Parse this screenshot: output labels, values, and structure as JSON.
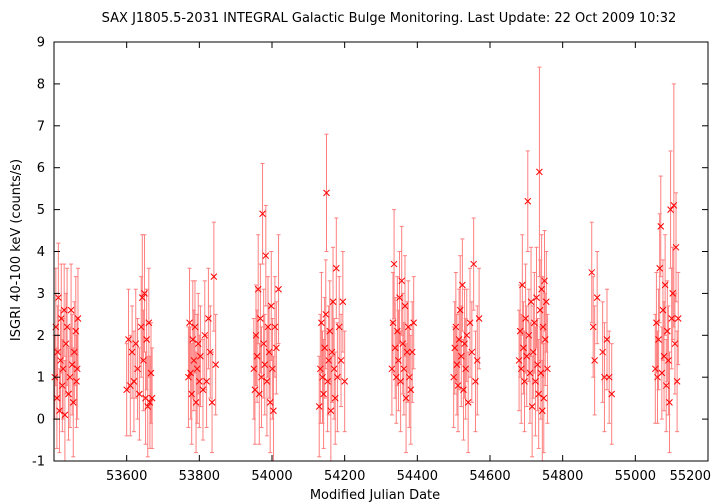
{
  "chart_data": {
    "type": "scatter",
    "title": "SAX J1805.5-2031   INTEGRAL Galactic Bulge Monitoring.  Last Update: 22 Oct 2009 10:32",
    "xlabel": "Modified Julian Date",
    "ylabel": "ISGRI 40-100 keV (counts/s)",
    "xlim": [
      53400,
      55200
    ],
    "ylim": [
      -1,
      9
    ],
    "xticks": [
      53600,
      53800,
      54000,
      54200,
      54400,
      54600,
      54800,
      55000,
      55200
    ],
    "yticks": [
      -1,
      0,
      1,
      2,
      3,
      4,
      5,
      6,
      7,
      8,
      9
    ],
    "grid": false,
    "legend": "none",
    "marker": "x",
    "error_bars": true,
    "colors": {
      "points": "#ff0000",
      "error_bars": "#ff7f7f",
      "axes": "#000000"
    },
    "series": [
      {
        "values": [
          [
            53402,
            1.0,
            1.0
          ],
          [
            53405,
            2.2,
            1.4
          ],
          [
            53408,
            0.5,
            1.2
          ],
          [
            53410,
            1.6,
            1.1
          ],
          [
            53412,
            2.9,
            1.3
          ],
          [
            53415,
            0.2,
            1.0
          ],
          [
            53418,
            1.4,
            1.2
          ],
          [
            53420,
            2.4,
            1.3
          ],
          [
            53423,
            0.8,
            1.1
          ],
          [
            53425,
            1.2,
            1.2
          ],
          [
            53428,
            2.6,
            1.1
          ],
          [
            53430,
            0.1,
            1.3
          ],
          [
            53433,
            1.8,
            1.2
          ],
          [
            53436,
            2.2,
            1.4
          ],
          [
            53440,
            0.6,
            1.1
          ],
          [
            53444,
            1.0,
            1.2
          ],
          [
            53447,
            2.6,
            1.1
          ],
          [
            53450,
            1.3,
            1.2
          ],
          [
            53453,
            0.4,
            1.3
          ],
          [
            53456,
            1.6,
            1.2
          ],
          [
            53460,
            2.1,
            1.3
          ],
          [
            53462,
            0.9,
            1.1
          ],
          [
            53464,
            1.2,
            1.2
          ],
          [
            53466,
            2.4,
            1.2
          ],
          [
            53600,
            0.7,
            1.1
          ],
          [
            53605,
            1.9,
            1.2
          ],
          [
            53610,
            0.8,
            1.2
          ],
          [
            53615,
            1.6,
            1.1
          ],
          [
            53620,
            0.9,
            1.2
          ],
          [
            53625,
            1.8,
            1.3
          ],
          [
            53630,
            1.2,
            1.2
          ],
          [
            53635,
            0.6,
            1.1
          ],
          [
            53640,
            2.2,
            1.2
          ],
          [
            53643,
            2.9,
            1.5
          ],
          [
            53646,
            1.4,
            1.2
          ],
          [
            53649,
            3.0,
            1.4
          ],
          [
            53652,
            0.5,
            1.1
          ],
          [
            53655,
            1.9,
            1.2
          ],
          [
            53658,
            0.3,
            1.2
          ],
          [
            53661,
            2.3,
            1.3
          ],
          [
            53664,
            0.4,
            1.1
          ],
          [
            53667,
            1.1,
            1.2
          ],
          [
            53670,
            0.5,
            1.2
          ],
          [
            53770,
            1.0,
            1.2
          ],
          [
            53773,
            2.3,
            1.3
          ],
          [
            53776,
            1.1,
            1.1
          ],
          [
            53779,
            0.6,
            1.2
          ],
          [
            53782,
            1.9,
            1.4
          ],
          [
            53785,
            1.4,
            1.2
          ],
          [
            53788,
            2.2,
            1.1
          ],
          [
            53791,
            0.4,
            1.2
          ],
          [
            53794,
            1.2,
            1.3
          ],
          [
            53797,
            1.8,
            1.2
          ],
          [
            53800,
            0.9,
            1.1
          ],
          [
            53803,
            1.5,
            1.2
          ],
          [
            53810,
            0.7,
            1.2
          ],
          [
            53815,
            2.0,
            1.3
          ],
          [
            53820,
            0.9,
            1.1
          ],
          [
            53825,
            2.4,
            1.2
          ],
          [
            53830,
            1.6,
            1.1
          ],
          [
            53835,
            0.4,
            1.2
          ],
          [
            53840,
            3.4,
            1.3
          ],
          [
            53845,
            1.3,
            1.2
          ],
          [
            53950,
            1.2,
            1.2
          ],
          [
            53953,
            0.7,
            1.3
          ],
          [
            53956,
            2.0,
            1.2
          ],
          [
            53959,
            1.5,
            1.1
          ],
          [
            53962,
            3.1,
            1.3
          ],
          [
            53965,
            0.6,
            1.2
          ],
          [
            53968,
            2.4,
            1.3
          ],
          [
            53971,
            1.0,
            1.2
          ],
          [
            53974,
            4.9,
            1.2
          ],
          [
            53977,
            1.8,
            1.3
          ],
          [
            53980,
            1.3,
            1.2
          ],
          [
            53983,
            3.9,
            1.2
          ],
          [
            53986,
            0.9,
            1.3
          ],
          [
            53989,
            2.2,
            1.2
          ],
          [
            53992,
            1.6,
            1.1
          ],
          [
            53995,
            0.4,
            1.2
          ],
          [
            53998,
            2.7,
            1.3
          ],
          [
            54001,
            1.2,
            1.2
          ],
          [
            54004,
            0.2,
            1.3
          ],
          [
            54008,
            2.2,
            1.2
          ],
          [
            54012,
            1.7,
            1.1
          ],
          [
            54018,
            3.1,
            1.3
          ],
          [
            54130,
            0.3,
            1.2
          ],
          [
            54133,
            1.2,
            1.3
          ],
          [
            54136,
            2.3,
            1.2
          ],
          [
            54139,
            1.0,
            1.1
          ],
          [
            54142,
            0.6,
            1.3
          ],
          [
            54145,
            1.7,
            1.2
          ],
          [
            54148,
            2.5,
            1.3
          ],
          [
            54150,
            5.4,
            1.4
          ],
          [
            54153,
            0.9,
            1.2
          ],
          [
            54156,
            1.4,
            1.3
          ],
          [
            54159,
            2.1,
            1.2
          ],
          [
            54162,
            0.2,
            1.3
          ],
          [
            54165,
            1.6,
            1.2
          ],
          [
            54168,
            2.8,
            1.3
          ],
          [
            54171,
            1.2,
            1.2
          ],
          [
            54174,
            0.5,
            1.1
          ],
          [
            54177,
            3.6,
            1.2
          ],
          [
            54180,
            1.0,
            1.3
          ],
          [
            54185,
            2.2,
            1.2
          ],
          [
            54190,
            1.4,
            1.1
          ],
          [
            54195,
            2.8,
            1.2
          ],
          [
            54200,
            0.9,
            1.2
          ],
          [
            54330,
            1.2,
            1.1
          ],
          [
            54333,
            2.3,
            1.2
          ],
          [
            54336,
            3.7,
            1.3
          ],
          [
            54339,
            1.7,
            1.2
          ],
          [
            54342,
            1.0,
            1.1
          ],
          [
            54345,
            2.1,
            1.3
          ],
          [
            54348,
            1.4,
            1.2
          ],
          [
            54351,
            2.9,
            1.1
          ],
          [
            54354,
            0.9,
            1.2
          ],
          [
            54357,
            3.3,
            1.3
          ],
          [
            54360,
            1.8,
            1.2
          ],
          [
            54363,
            1.2,
            1.1
          ],
          [
            54366,
            2.7,
            1.2
          ],
          [
            54369,
            0.5,
            1.3
          ],
          [
            54372,
            1.6,
            1.2
          ],
          [
            54375,
            2.2,
            1.1
          ],
          [
            54378,
            1.0,
            1.2
          ],
          [
            54382,
            0.7,
            1.3
          ],
          [
            54386,
            1.6,
            1.2
          ],
          [
            54390,
            2.3,
            1.1
          ],
          [
            54500,
            1.0,
            1.2
          ],
          [
            54503,
            1.7,
            1.1
          ],
          [
            54506,
            2.2,
            1.3
          ],
          [
            54509,
            1.3,
            1.2
          ],
          [
            54512,
            0.8,
            1.1
          ],
          [
            54515,
            1.9,
            1.2
          ],
          [
            54518,
            2.6,
            1.3
          ],
          [
            54521,
            1.5,
            1.2
          ],
          [
            54524,
            3.2,
            1.1
          ],
          [
            54527,
            0.7,
            1.2
          ],
          [
            54530,
            1.8,
            1.3
          ],
          [
            54533,
            1.2,
            1.2
          ],
          [
            54536,
            2.0,
            1.1
          ],
          [
            54540,
            0.4,
            1.2
          ],
          [
            54545,
            2.3,
            1.3
          ],
          [
            54550,
            1.6,
            1.2
          ],
          [
            54555,
            3.7,
            1.1
          ],
          [
            54560,
            0.9,
            1.2
          ],
          [
            54565,
            1.4,
            1.3
          ],
          [
            54570,
            2.4,
            1.2
          ],
          [
            54680,
            1.4,
            1.2
          ],
          [
            54683,
            2.1,
            1.1
          ],
          [
            54686,
            1.2,
            1.3
          ],
          [
            54689,
            3.2,
            1.2
          ],
          [
            54692,
            1.7,
            1.1
          ],
          [
            54695,
            0.9,
            1.2
          ],
          [
            54698,
            2.4,
            1.3
          ],
          [
            54701,
            1.5,
            1.2
          ],
          [
            54704,
            5.2,
            1.2
          ],
          [
            54707,
            2.0,
            1.1
          ],
          [
            54710,
            1.1,
            1.2
          ],
          [
            54713,
            2.8,
            1.3
          ],
          [
            54716,
            0.3,
            1.2
          ],
          [
            54719,
            1.6,
            1.1
          ],
          [
            54722,
            2.3,
            1.2
          ],
          [
            54725,
            0.9,
            1.3
          ],
          [
            54728,
            2.9,
            1.2
          ],
          [
            54731,
            1.3,
            1.1
          ],
          [
            54734,
            0.6,
            1.3
          ],
          [
            54736,
            5.9,
            2.5
          ],
          [
            54738,
            2.6,
            1.2
          ],
          [
            54740,
            1.1,
            1.1
          ],
          [
            54742,
            3.1,
            1.3
          ],
          [
            54744,
            0.2,
            1.2
          ],
          [
            54746,
            2.2,
            1.2
          ],
          [
            54748,
            0.5,
            1.3
          ],
          [
            54750,
            3.3,
            1.2
          ],
          [
            54752,
            1.9,
            1.1
          ],
          [
            54755,
            2.8,
            1.2
          ],
          [
            54758,
            1.2,
            1.3
          ],
          [
            54880,
            3.5,
            1.2
          ],
          [
            54884,
            2.2,
            1.2
          ],
          [
            54888,
            1.4,
            1.3
          ],
          [
            54895,
            2.9,
            1.1
          ],
          [
            54910,
            1.6,
            1.2
          ],
          [
            54915,
            1.0,
            1.3
          ],
          [
            54922,
            1.9,
            1.2
          ],
          [
            54928,
            1.0,
            1.1
          ],
          [
            54935,
            0.6,
            1.2
          ],
          [
            55055,
            1.2,
            1.3
          ],
          [
            55058,
            2.3,
            1.2
          ],
          [
            55061,
            1.0,
            1.1
          ],
          [
            55064,
            1.9,
            1.2
          ],
          [
            55067,
            3.6,
            1.3
          ],
          [
            55070,
            4.6,
            1.2
          ],
          [
            55073,
            1.1,
            1.1
          ],
          [
            55076,
            2.6,
            1.2
          ],
          [
            55079,
            1.5,
            1.3
          ],
          [
            55082,
            3.2,
            1.2
          ],
          [
            55085,
            0.8,
            1.1
          ],
          [
            55088,
            2.1,
            1.2
          ],
          [
            55091,
            1.4,
            1.3
          ],
          [
            55094,
            0.4,
            1.2
          ],
          [
            55097,
            5.0,
            1.4
          ],
          [
            55100,
            2.4,
            1.2
          ],
          [
            55103,
            3.0,
            1.1
          ],
          [
            55106,
            5.1,
            2.9
          ],
          [
            55109,
            1.8,
            1.2
          ],
          [
            55112,
            4.1,
            1.3
          ],
          [
            55115,
            0.9,
            1.2
          ],
          [
            55118,
            2.4,
            1.1
          ]
        ]
      }
    ]
  }
}
